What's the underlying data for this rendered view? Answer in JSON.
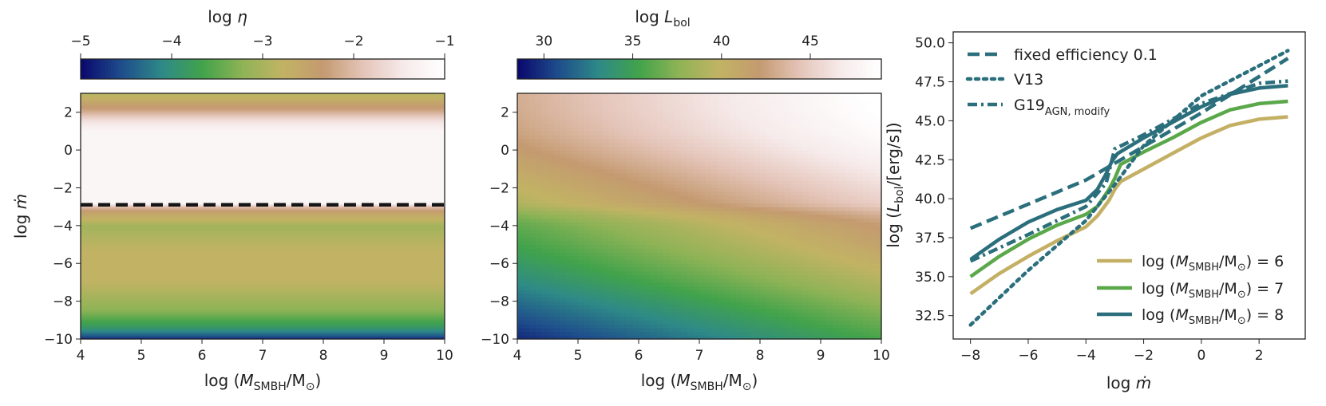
{
  "colors": {
    "cmap": [
      "#0a0a6e",
      "#1f4e8c",
      "#2e8a87",
      "#42a34b",
      "#8fb356",
      "#c2b364",
      "#c49a70",
      "#e4c4b8",
      "#f6eaea",
      "#ffffff"
    ],
    "dark_teal": "#2b6f7c",
    "mid_green": "#5aa84a",
    "khaki": "#c4b064",
    "dashed_line": "#151515"
  },
  "chart_data": [
    {
      "type": "heatmap",
      "title": "",
      "colorbar": {
        "label_prefix": "log",
        "label_sym": "η",
        "ticks": [
          "−5",
          "−4",
          "−3",
          "−2",
          "−1"
        ],
        "tick_values": [
          -5,
          -4,
          -3,
          -2,
          -1
        ],
        "range": [
          -5,
          -1
        ]
      },
      "xlabel": {
        "prefix": "log",
        "open": "(",
        "var": "M",
        "sub": "SMBH",
        "slash": "/M",
        "odot": "⊙",
        "close": ")"
      },
      "ylabel": {
        "prefix": "log",
        "var": "ṁ"
      },
      "x_ticks": [
        "4",
        "5",
        "6",
        "7",
        "8",
        "9",
        "10"
      ],
      "x_tick_values": [
        4,
        5,
        6,
        7,
        8,
        9,
        10
      ],
      "y_ticks": [
        "2",
        "0",
        "−2",
        "−4",
        "−6",
        "−8",
        "−10"
      ],
      "y_tick_values": [
        2,
        0,
        -2,
        -4,
        -6,
        -8,
        -10
      ],
      "xlim": [
        4,
        10
      ],
      "ylim": [
        -10,
        3
      ],
      "y_profile": [
        {
          "y": -10.0,
          "v": -4.85
        },
        {
          "y": -9.8,
          "v": -4.45
        },
        {
          "y": -9.4,
          "v": -3.9
        },
        {
          "y": -8.5,
          "v": -3.25
        },
        {
          "y": -7.0,
          "v": -2.8
        },
        {
          "y": -5.5,
          "v": -2.75
        },
        {
          "y": -4.0,
          "v": -3.05
        },
        {
          "y": -3.3,
          "v": -2.5
        },
        {
          "y": -3.0,
          "v": -2.0
        },
        {
          "y": -2.8,
          "v": -1.2
        },
        {
          "y": 1.0,
          "v": -1.2
        },
        {
          "y": 1.6,
          "v": -1.6
        },
        {
          "y": 2.1,
          "v": -2.2
        },
        {
          "y": 3.0,
          "v": -2.9
        }
      ],
      "threshold_line_y": -2.9
    },
    {
      "type": "heatmap",
      "title": "",
      "colorbar": {
        "label_prefix": "log",
        "label_var": "L",
        "label_sub": "bol",
        "ticks": [
          "30",
          "35",
          "40",
          "45"
        ],
        "tick_values": [
          30,
          35,
          40,
          45
        ],
        "range": [
          28.5,
          49
        ]
      },
      "xlabel": {
        "prefix": "log",
        "open": "(",
        "var": "M",
        "sub": "SMBH",
        "slash": "/M",
        "odot": "⊙",
        "close": ")"
      },
      "x_ticks": [
        "4",
        "5",
        "6",
        "7",
        "8",
        "9",
        "10"
      ],
      "x_tick_values": [
        4,
        5,
        6,
        7,
        8,
        9,
        10
      ],
      "y_ticks": [
        "2",
        "0",
        "−2",
        "−4",
        "−6",
        "−8",
        "−10"
      ],
      "y_tick_values": [
        2,
        0,
        -2,
        -4,
        -6,
        -8,
        -10
      ],
      "xlim": [
        4,
        10
      ],
      "ylim": [
        -10,
        3
      ]
    },
    {
      "type": "line",
      "title": "",
      "xlabel": {
        "prefix": "log",
        "var": "ṁ"
      },
      "ylabel": {
        "prefix": "log",
        "open": "(",
        "var": "L",
        "sub": "bol",
        "rest": "/[erg/s])"
      },
      "x_ticks": [
        "−8",
        "−6",
        "−4",
        "−2",
        "0",
        "2"
      ],
      "x_tick_values": [
        -8,
        -6,
        -4,
        -2,
        0,
        2
      ],
      "y_ticks": [
        "32.5",
        "35.0",
        "37.5",
        "40.0",
        "42.5",
        "45.0",
        "47.5",
        "50.0"
      ],
      "y_tick_values": [
        32.5,
        35.0,
        37.5,
        40.0,
        42.5,
        45.0,
        47.5,
        50.0
      ],
      "xlim": [
        -8.6,
        3.6
      ],
      "ylim": [
        31.0,
        50.7
      ],
      "legend_styles": [
        {
          "label": "fixed efficiency 0.1",
          "style": "dashed"
        },
        {
          "label": "V13",
          "style": "dotted"
        },
        {
          "label_main": "G19",
          "label_sub": "AGN, modify",
          "style": "dashdot"
        }
      ],
      "legend_mass": [
        {
          "label_prefix": "log",
          "open": "(",
          "var": "M",
          "sub": "SMBH",
          "slash": "/M",
          "odot": "⊙",
          "rest": ") = 6",
          "color": "khaki"
        },
        {
          "label_prefix": "log",
          "open": "(",
          "var": "M",
          "sub": "SMBH",
          "slash": "/M",
          "odot": "⊙",
          "rest": ") = 7",
          "color": "mid_green"
        },
        {
          "label_prefix": "log",
          "open": "(",
          "var": "M",
          "sub": "SMBH",
          "slash": "/M",
          "odot": "⊙",
          "rest": ") = 8",
          "color": "dark_teal"
        }
      ],
      "series": [
        {
          "mass": 6,
          "color": "khaki",
          "style": "solid",
          "x": [
            -8,
            -7,
            -6,
            -5,
            -4,
            -3.6,
            -3.2,
            -3.0,
            -2.8,
            -2,
            -1,
            0,
            1,
            2,
            3
          ],
          "y": [
            33.9,
            35.2,
            36.3,
            37.3,
            38.2,
            38.9,
            39.9,
            40.6,
            41.1,
            41.9,
            42.9,
            43.9,
            44.7,
            45.1,
            45.25
          ]
        },
        {
          "mass": 7,
          "color": "mid_green",
          "style": "solid",
          "x": [
            -8,
            -7,
            -6,
            -5,
            -4,
            -3.6,
            -3.2,
            -3.0,
            -2.8,
            -2,
            -1,
            0,
            1,
            2,
            3
          ],
          "y": [
            35.0,
            36.3,
            37.4,
            38.3,
            39.0,
            39.5,
            40.6,
            41.3,
            42.2,
            43.0,
            43.9,
            44.9,
            45.7,
            46.1,
            46.25
          ]
        },
        {
          "mass": 8,
          "color": "dark_teal",
          "style": "solid",
          "x": [
            -8,
            -7,
            -6,
            -5,
            -4,
            -3.6,
            -3.3,
            -3.1,
            -2.9,
            -2,
            -1,
            0,
            1,
            2,
            3
          ],
          "y": [
            36.1,
            37.4,
            38.5,
            39.3,
            39.9,
            40.6,
            41.6,
            42.4,
            42.9,
            43.9,
            44.9,
            45.9,
            46.7,
            47.1,
            47.25
          ]
        },
        {
          "name_ref": "fixed efficiency 0.1",
          "color": "dark_teal",
          "style": "dashed",
          "x": [
            -8,
            -4,
            0,
            3
          ],
          "y": [
            38.1,
            41.2,
            45.5,
            49.0
          ]
        },
        {
          "name_ref": "V13",
          "color": "dark_teal",
          "style": "dotted",
          "x": [
            -8,
            -6,
            -4,
            -3,
            -2,
            0,
            3
          ],
          "y": [
            31.9,
            35.4,
            38.6,
            40.9,
            43.4,
            46.6,
            49.5
          ]
        },
        {
          "name_ref": "G19_AGN,modify",
          "color": "dark_teal",
          "style": "dashdot",
          "x": [
            -8,
            -6,
            -4,
            -3.3,
            -3.0,
            -2,
            0,
            2,
            3
          ],
          "y": [
            36.0,
            37.7,
            39.5,
            41.0,
            43.2,
            44.1,
            46.1,
            47.4,
            47.55
          ]
        }
      ]
    }
  ]
}
